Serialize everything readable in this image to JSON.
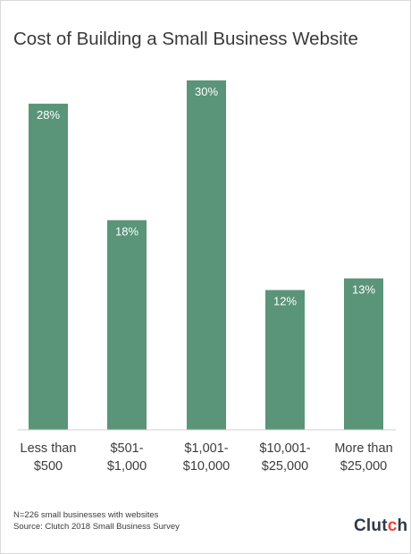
{
  "chart_data": {
    "type": "bar",
    "title": "Cost of Building a Small Business Website",
    "categories": [
      [
        "Less than",
        "$500"
      ],
      [
        "$501-",
        "$1,000"
      ],
      [
        "$1,001-",
        "$10,000"
      ],
      [
        "$10,001-",
        "$25,000"
      ],
      [
        "More than",
        "$25,000"
      ]
    ],
    "values": [
      28,
      18,
      30,
      12,
      13
    ],
    "data_labels": [
      "28%",
      "18%",
      "30%",
      "12%",
      "13%"
    ],
    "unit": "%",
    "ylim": [
      0,
      30
    ],
    "grid": false,
    "legend": "none",
    "bar_color": "#5a9479"
  },
  "footnotes": {
    "sample": "N=226 small businesses with websites",
    "source": "Source: Clutch 2018 Small Business Survey"
  },
  "logo": {
    "text_main": "Clut",
    "text_accent": "c",
    "text_end": "h",
    "accent_color": "#ef4335"
  }
}
